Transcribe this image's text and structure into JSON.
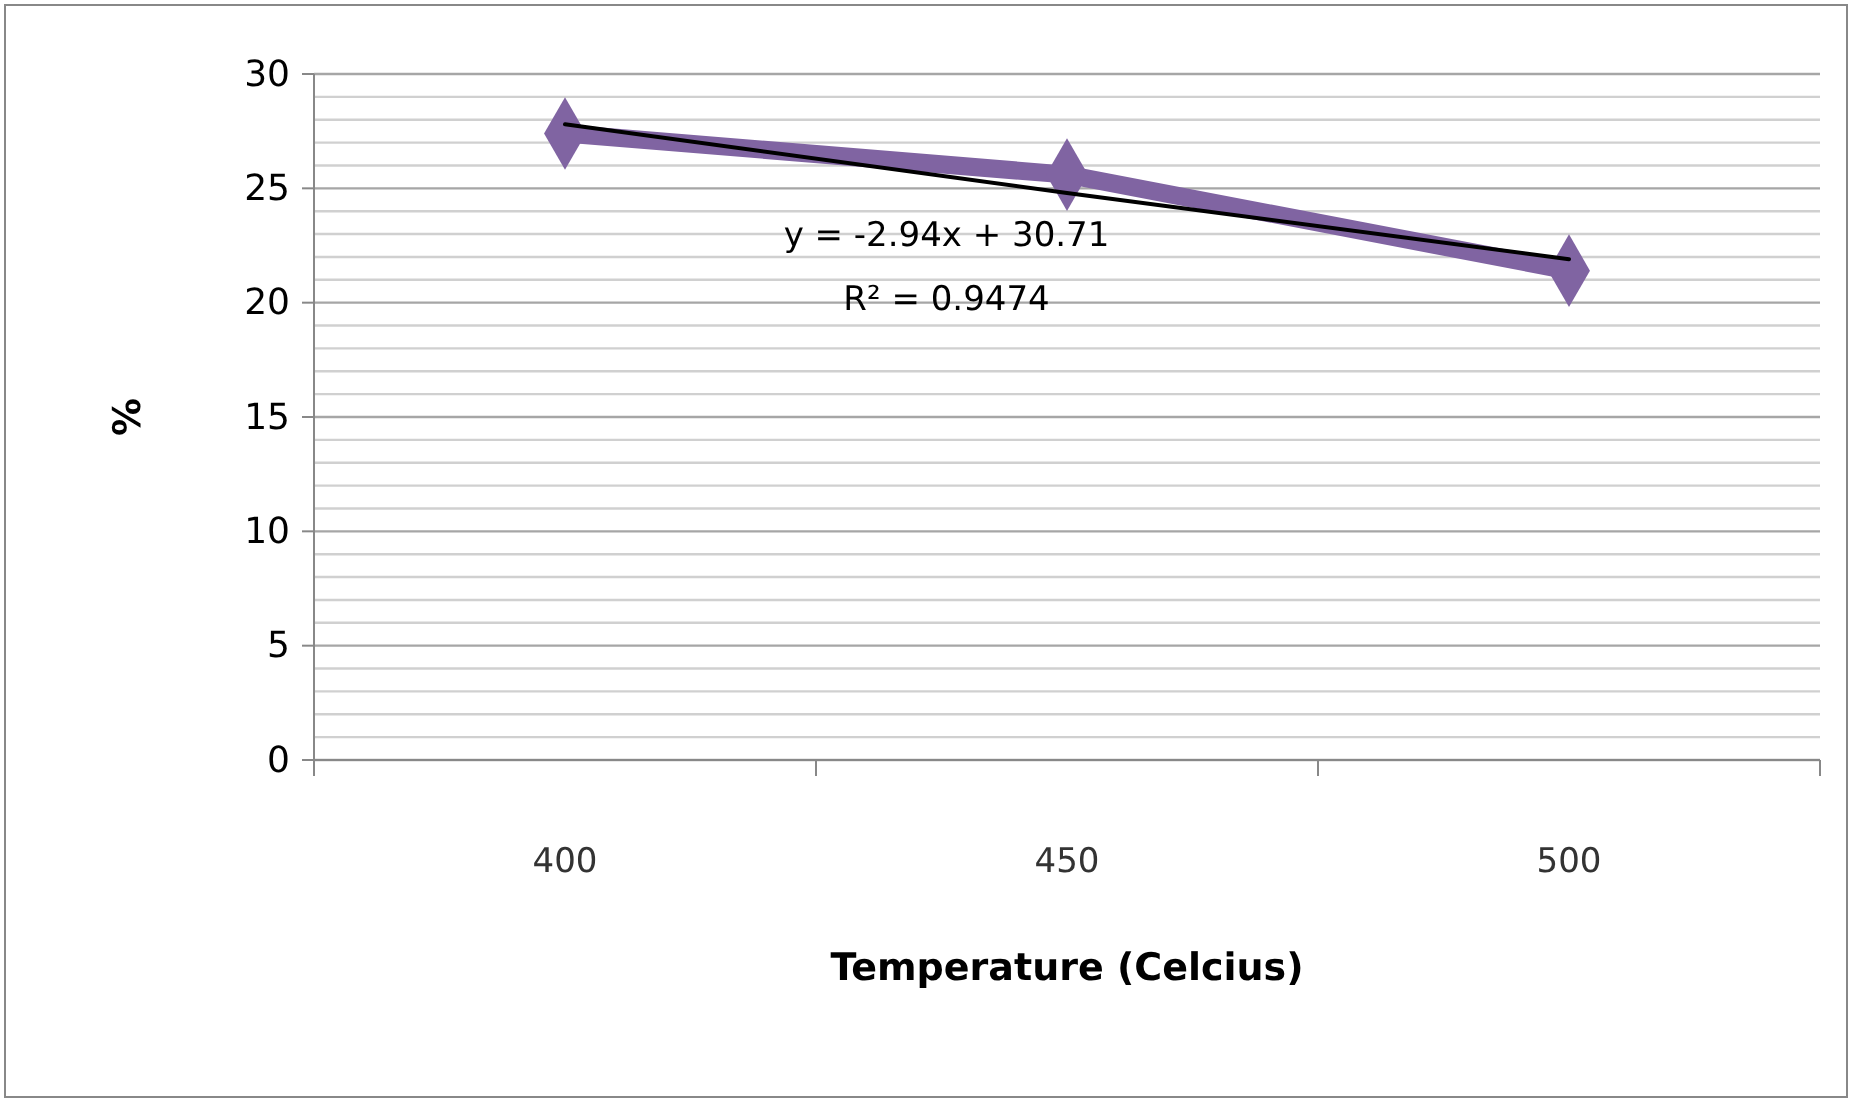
{
  "chart_data": {
    "type": "line",
    "xlabel": "Temperature (Celcius)",
    "ylabel": "%",
    "categories": [
      "400",
      "450",
      "500"
    ],
    "series": [
      {
        "color": "#8064a2",
        "values": [
          27.4,
          25.6,
          21.4
        ],
        "marker": "diamond"
      },
      {
        "color": "#000000",
        "values": [
          27.8,
          24.8,
          21.9
        ],
        "marker": "none"
      }
    ],
    "ylim": [
      0,
      30
    ],
    "yticks": [
      0,
      {
        "value": 1,
        "label": null
      },
      {
        "value": 2,
        "label": null
      },
      {
        "value": 3,
        "label": null
      },
      {
        "value": 4,
        "label": null
      },
      5,
      {
        "value": 6,
        "label": null
      },
      {
        "value": 7,
        "label": null
      },
      {
        "value": 8,
        "label": null
      },
      {
        "value": 9,
        "label": null
      },
      10,
      {
        "value": 11,
        "label": null
      },
      {
        "value": 12,
        "label": null
      },
      {
        "value": 13,
        "label": null
      },
      {
        "value": 14,
        "label": null
      },
      15,
      {
        "value": 16,
        "label": null
      },
      {
        "value": 17,
        "label": null
      },
      {
        "value": 18,
        "label": null
      },
      {
        "value": 19,
        "label": null
      },
      20,
      {
        "value": 21,
        "label": null
      },
      {
        "value": 22,
        "label": null
      },
      {
        "value": 23,
        "label": null
      },
      {
        "value": 24,
        "label": null
      },
      25,
      {
        "value": 26,
        "label": null
      },
      {
        "value": 27,
        "label": null
      },
      {
        "value": 28,
        "label": null
      },
      {
        "value": 29,
        "label": null
      },
      30
    ],
    "grid": "y",
    "annotations": [
      "y = -2.94x + 30.71",
      "R² = 0.9474"
    ]
  }
}
